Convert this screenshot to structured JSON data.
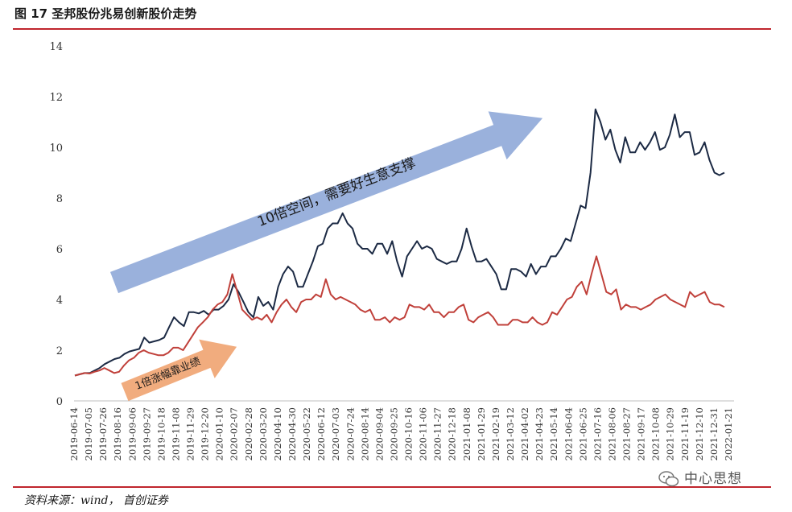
{
  "header": {
    "title": "图 17 圣邦股份兆易创新股价走势"
  },
  "footer": {
    "source": "资料来源：wind， 首创证券"
  },
  "watermark": {
    "text": "中心思想",
    "icon": "wechat-icon"
  },
  "chart_data": {
    "type": "line",
    "title": "图 17 圣邦股份兆易创新股价走势",
    "xlabel": "",
    "ylabel": "",
    "ylim": [
      0,
      14
    ],
    "yticks": [
      0,
      2,
      4,
      6,
      8,
      10,
      12,
      14
    ],
    "grid": false,
    "legend": "none",
    "x_tick_labels": [
      "2019-06-14",
      "2019-07-05",
      "2019-07-26",
      "2019-08-16",
      "2019-09-06",
      "2019-09-27",
      "2019-10-18",
      "2019-11-08",
      "2019-11-29",
      "2019-12-20",
      "2020-01-10",
      "2020-02-07",
      "2020-02-28",
      "2020-03-20",
      "2020-04-10",
      "2020-04-30",
      "2020-05-22",
      "2020-06-12",
      "2020-07-03",
      "2020-07-24",
      "2020-08-14",
      "2020-09-04",
      "2020-09-25",
      "2020-10-16",
      "2020-11-06",
      "2020-11-27",
      "2020-12-18",
      "2021-01-08",
      "2021-01-29",
      "2021-02-19",
      "2021-03-12",
      "2021-04-02",
      "2021-04-23",
      "2021-05-14",
      "2021-06-04",
      "2021-06-25",
      "2021-07-16",
      "2021-08-06",
      "2021-08-27",
      "2021-09-17",
      "2021-10-08",
      "2021-10-29",
      "2021-11-19",
      "2021-12-10",
      "2021-12-31",
      "2022-01-21"
    ],
    "series": [
      {
        "color": "#1c2a44",
        "values": [
          1.0,
          1.05,
          1.1,
          1.1,
          1.2,
          1.3,
          1.45,
          1.55,
          1.65,
          1.7,
          1.85,
          1.95,
          2.0,
          2.05,
          2.5,
          2.3,
          2.35,
          2.4,
          2.5,
          2.9,
          3.3,
          3.1,
          2.95,
          3.5,
          3.5,
          3.45,
          3.55,
          3.4,
          3.6,
          3.6,
          3.75,
          4.0,
          4.6,
          4.3,
          3.9,
          3.5,
          3.3,
          4.1,
          3.75,
          3.9,
          3.6,
          4.5,
          5.0,
          5.3,
          5.1,
          4.5,
          4.5,
          5.0,
          5.5,
          6.1,
          6.2,
          6.8,
          7.0,
          7.0,
          7.4,
          7.0,
          6.8,
          6.2,
          6.0,
          6.0,
          5.8,
          6.2,
          6.2,
          5.8,
          6.3,
          5.5,
          4.9,
          5.7,
          6.0,
          6.3,
          6.0,
          6.1,
          6.0,
          5.6,
          5.5,
          5.4,
          5.5,
          5.5,
          6.0,
          6.8,
          6.1,
          5.5,
          5.5,
          5.6,
          5.3,
          5.0,
          4.4,
          4.4,
          5.2,
          5.2,
          5.1,
          4.9,
          5.4,
          5.0,
          5.3,
          5.3,
          5.7,
          5.7,
          6.0,
          6.4,
          6.3,
          7.0,
          7.7,
          7.6,
          9.0,
          11.5,
          11.0,
          10.3,
          10.7,
          9.9,
          9.4,
          10.4,
          9.8,
          9.8,
          10.2,
          9.9,
          10.2,
          10.6,
          9.9,
          10.0,
          10.5,
          11.3,
          10.4,
          10.6,
          10.6,
          9.7,
          9.8,
          10.2,
          9.5,
          9.0,
          8.9,
          9.0
        ]
      },
      {
        "color": "#c0403a",
        "values": [
          1.0,
          1.05,
          1.1,
          1.08,
          1.15,
          1.2,
          1.3,
          1.2,
          1.1,
          1.15,
          1.4,
          1.6,
          1.7,
          1.9,
          2.0,
          1.9,
          1.85,
          1.8,
          1.8,
          1.9,
          2.1,
          2.1,
          2.0,
          2.3,
          2.6,
          2.9,
          3.1,
          3.3,
          3.6,
          3.8,
          3.9,
          4.2,
          5.0,
          4.3,
          3.6,
          3.4,
          3.2,
          3.3,
          3.2,
          3.4,
          3.1,
          3.5,
          3.8,
          4.0,
          3.7,
          3.5,
          3.9,
          4.0,
          4.0,
          4.2,
          4.1,
          4.8,
          4.2,
          4.0,
          4.1,
          4.0,
          3.9,
          3.8,
          3.6,
          3.5,
          3.6,
          3.2,
          3.2,
          3.3,
          3.1,
          3.3,
          3.2,
          3.3,
          3.8,
          3.7,
          3.7,
          3.6,
          3.8,
          3.5,
          3.5,
          3.3,
          3.5,
          3.5,
          3.7,
          3.8,
          3.2,
          3.1,
          3.3,
          3.4,
          3.5,
          3.3,
          3.0,
          3.0,
          3.0,
          3.2,
          3.2,
          3.1,
          3.1,
          3.3,
          3.1,
          3.0,
          3.1,
          3.5,
          3.4,
          3.7,
          4.0,
          4.1,
          4.5,
          4.7,
          4.2,
          5.0,
          5.7,
          5.0,
          4.3,
          4.2,
          4.4,
          3.6,
          3.8,
          3.7,
          3.7,
          3.6,
          3.7,
          3.8,
          4.0,
          4.1,
          4.2,
          4.0,
          3.9,
          3.8,
          3.7,
          4.3,
          4.1,
          4.2,
          4.3,
          3.9,
          3.8,
          3.8,
          3.7
        ]
      }
    ],
    "annotations": [
      {
        "text": "10倍空间，需要好生意支撑",
        "color": "#8fa9d8"
      },
      {
        "text": "1倍涨幅靠业绩",
        "color": "#f0a877"
      }
    ]
  }
}
